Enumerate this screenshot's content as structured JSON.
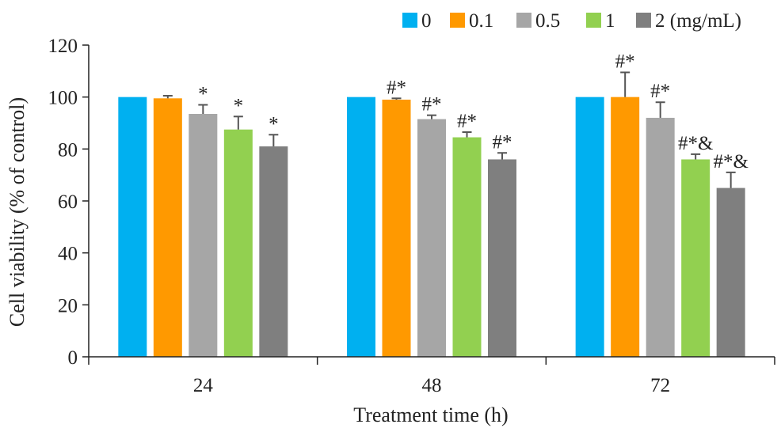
{
  "chart_data": {
    "type": "bar",
    "categories": [
      "24",
      "48",
      "72"
    ],
    "xlabel": "Treatment time (h)",
    "ylabel": "Cell viability (% of control)",
    "ylim": [
      0,
      120
    ],
    "yticks": [
      0,
      20,
      40,
      60,
      80,
      100,
      120
    ],
    "grid": false,
    "legend_position": "top-right",
    "series": [
      {
        "name": "0",
        "color": "#00B0F0",
        "values": [
          100,
          100,
          100
        ],
        "errors": [
          0,
          0,
          0
        ],
        "annotations": [
          "",
          "",
          ""
        ]
      },
      {
        "name": "0.1",
        "color": "#FF9900",
        "values": [
          99.5,
          99,
          100
        ],
        "errors": [
          1,
          0.5,
          9.5
        ],
        "annotations": [
          "",
          "#*",
          "#*"
        ]
      },
      {
        "name": "0.5",
        "color": "#A6A6A6",
        "values": [
          93.5,
          91.5,
          92
        ],
        "errors": [
          3.5,
          1.5,
          6
        ],
        "annotations": [
          "*",
          "#*",
          "#*"
        ]
      },
      {
        "name": "1",
        "color": "#92D050",
        "values": [
          87.5,
          84.5,
          76
        ],
        "errors": [
          5,
          2,
          2
        ],
        "annotations": [
          "*",
          "#*",
          "#*&"
        ]
      },
      {
        "name": "2 (mg/mL)",
        "color": "#7F7F7F",
        "values": [
          81,
          76,
          65
        ],
        "errors": [
          4.5,
          2.5,
          6
        ],
        "annotations": [
          "*",
          "#*",
          "#*&"
        ]
      }
    ]
  }
}
